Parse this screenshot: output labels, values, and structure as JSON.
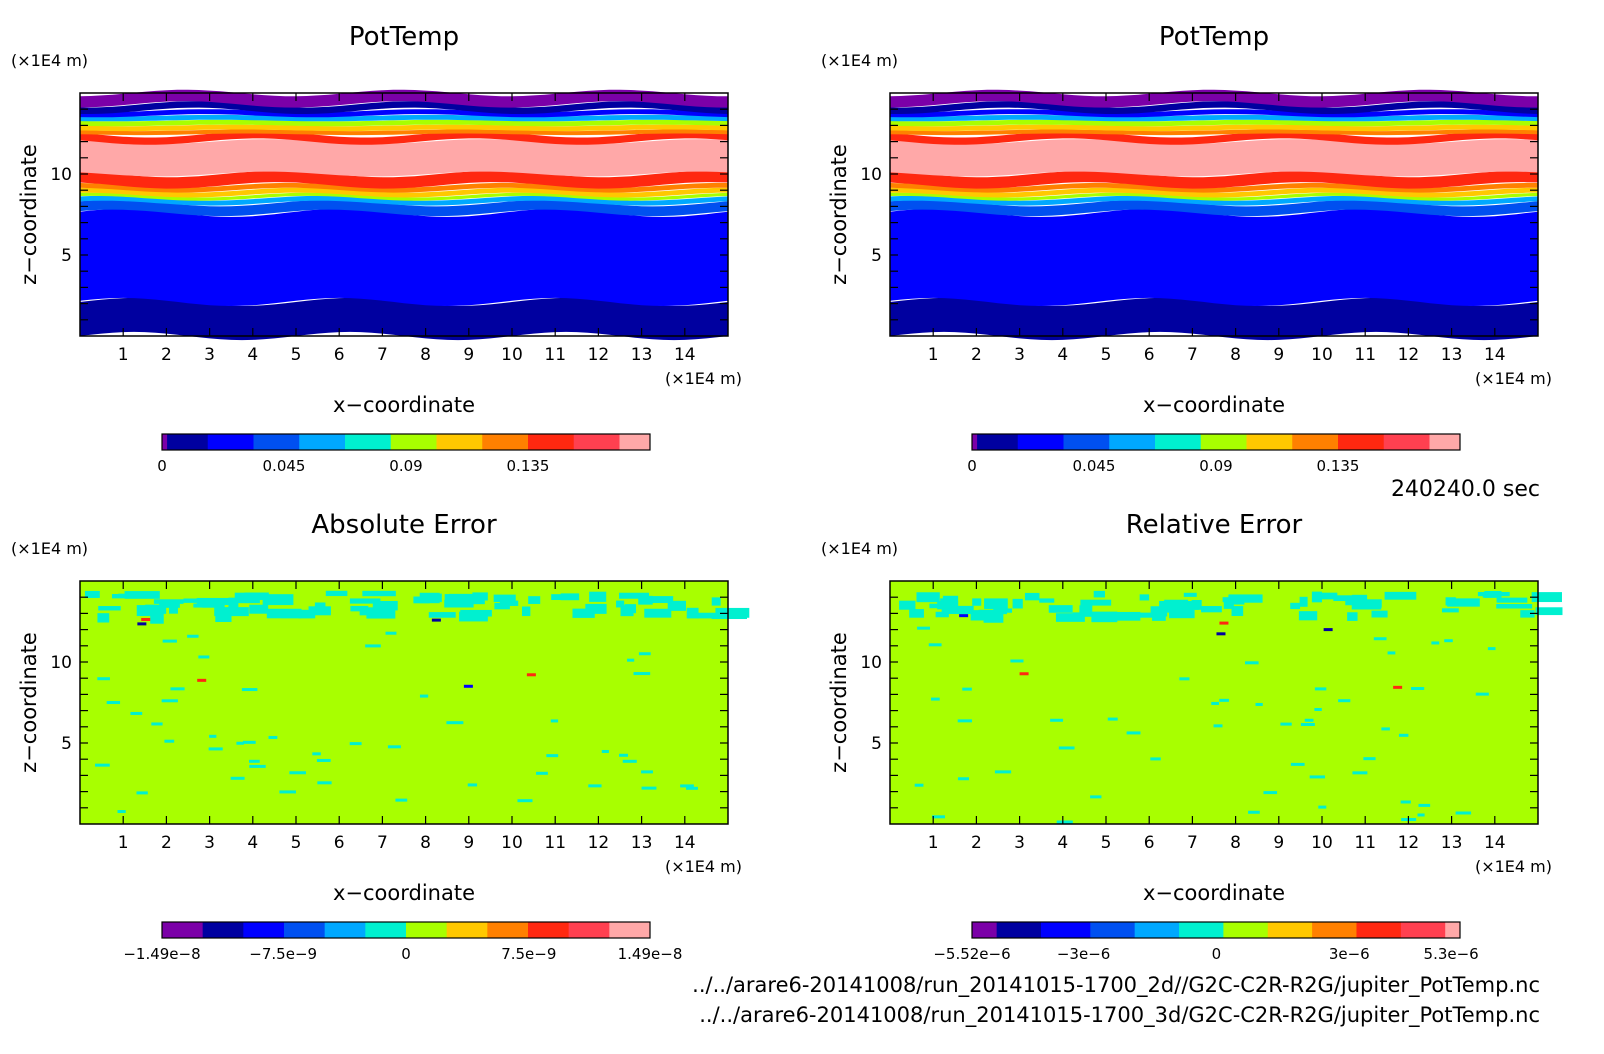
{
  "time_label": "240240.0 sec",
  "files": [
    "../../arare6-20141008/run_20141015-1700_2d//G2C-C2R-R2G/jupiter_PotTemp.nc",
    "../../arare6-20141008/run_20141015-1700_3d/G2C-C2R-R2G/jupiter_PotTemp.nc"
  ],
  "colors": {
    "purple": "#7b00a8",
    "navy": "#0000a0",
    "blue": "#0000ff",
    "mid_blue": "#0050f0",
    "sky_blue": "#00a8ff",
    "cyan": "#00f0d0",
    "lime": "#a8ff00",
    "yellow": "#ffc800",
    "orange": "#ff8000",
    "red": "#ff2810",
    "light_red": "#ff4050",
    "pink": "#ffa8a8"
  },
  "chart_data": [
    {
      "type": "heatmap",
      "title": "PotTemp",
      "xlabel": "x−coordinate",
      "ylabel": "z−coordinate",
      "x_unit": "(×1E4 m)",
      "y_unit": "(×1E4 m)",
      "xlim": [
        0,
        15
      ],
      "ylim": [
        0,
        15
      ],
      "x_ticks": [
        "1",
        "2",
        "3",
        "4",
        "5",
        "6",
        "7",
        "8",
        "9",
        "10",
        "11",
        "12",
        "13",
        "14"
      ],
      "y_ticks": [
        "5",
        "10"
      ],
      "field": "potential_temperature_bands",
      "colorbar": {
        "colors": [
          "#7b00a8",
          "#0000a0",
          "#0000ff",
          "#0050f0",
          "#00a8ff",
          "#00f0d0",
          "#a8ff00",
          "#ffc800",
          "#ff8000",
          "#ff2810",
          "#ff4050",
          "#ffa8a8"
        ],
        "widths": [
          1,
          8,
          9,
          9,
          9,
          9,
          9,
          9,
          9,
          9,
          9,
          6
        ],
        "labels": [
          "0",
          "0.045",
          "0.09",
          "0.135"
        ],
        "label_values": [
          0,
          0.045,
          0.09,
          0.135
        ],
        "range": [
          0,
          0.18
        ]
      }
    },
    {
      "type": "heatmap",
      "title": "PotTemp",
      "xlabel": "x−coordinate",
      "ylabel": "z−coordinate",
      "x_unit": "(×1E4 m)",
      "y_unit": "(×1E4 m)",
      "xlim": [
        0,
        15
      ],
      "ylim": [
        0,
        15
      ],
      "x_ticks": [
        "1",
        "2",
        "3",
        "4",
        "5",
        "6",
        "7",
        "8",
        "9",
        "10",
        "11",
        "12",
        "13",
        "14"
      ],
      "y_ticks": [
        "5",
        "10"
      ],
      "field": "potential_temperature_bands",
      "colorbar": {
        "colors": [
          "#7b00a8",
          "#0000a0",
          "#0000ff",
          "#0050f0",
          "#00a8ff",
          "#00f0d0",
          "#a8ff00",
          "#ffc800",
          "#ff8000",
          "#ff2810",
          "#ff4050",
          "#ffa8a8"
        ],
        "widths": [
          1,
          8,
          9,
          9,
          9,
          9,
          9,
          9,
          9,
          9,
          9,
          6
        ],
        "labels": [
          "0",
          "0.045",
          "0.09",
          "0.135"
        ],
        "label_values": [
          0,
          0.045,
          0.09,
          0.135
        ],
        "range": [
          0,
          0.18
        ]
      }
    },
    {
      "type": "heatmap",
      "title": "Absolute Error",
      "xlabel": "x−coordinate",
      "ylabel": "z−coordinate",
      "x_unit": "(×1E4 m)",
      "y_unit": "(×1E4 m)",
      "xlim": [
        0,
        15
      ],
      "ylim": [
        0,
        15
      ],
      "x_ticks": [
        "1",
        "2",
        "3",
        "4",
        "5",
        "6",
        "7",
        "8",
        "9",
        "10",
        "11",
        "12",
        "13",
        "14"
      ],
      "y_ticks": [
        "5",
        "10"
      ],
      "field": "error_noise",
      "seed": 7,
      "background": "#a8ff00",
      "colorbar": {
        "colors": [
          "#7b00a8",
          "#0000a0",
          "#0000ff",
          "#0050f0",
          "#00a8ff",
          "#00f0d0",
          "#a8ff00",
          "#ffc800",
          "#ff8000",
          "#ff2810",
          "#ff4050",
          "#ffa8a8"
        ],
        "widths": [
          1,
          1,
          1,
          1,
          1,
          1,
          1,
          1,
          1,
          1,
          1,
          1
        ],
        "labels": [
          "−1.49e−8",
          "−7.5e−9",
          "0",
          "7.5e−9",
          "1.49e−8"
        ],
        "label_values": [
          -1.49e-08,
          -7.5e-09,
          0,
          7.5e-09,
          1.49e-08
        ],
        "range": [
          -1.49e-08,
          1.49e-08
        ]
      }
    },
    {
      "type": "heatmap",
      "title": "Relative Error",
      "xlabel": "x−coordinate",
      "ylabel": "z−coordinate",
      "x_unit": "(×1E4 m)",
      "y_unit": "(×1E4 m)",
      "xlim": [
        0,
        15
      ],
      "ylim": [
        0,
        15
      ],
      "x_ticks": [
        "1",
        "2",
        "3",
        "4",
        "5",
        "6",
        "7",
        "8",
        "9",
        "10",
        "11",
        "12",
        "13",
        "14"
      ],
      "y_ticks": [
        "5",
        "10"
      ],
      "field": "error_noise",
      "seed": 23,
      "background": "#a8ff00",
      "colorbar": {
        "colors": [
          "#7b00a8",
          "#0000a0",
          "#0000ff",
          "#0050f0",
          "#00a8ff",
          "#00f0d0",
          "#a8ff00",
          "#ffc800",
          "#ff8000",
          "#ff2810",
          "#ff4050",
          "#ffa8a8"
        ],
        "widths": [
          5,
          9,
          10,
          9,
          9,
          9,
          9,
          9,
          9,
          9,
          9,
          3
        ],
        "labels": [
          "−5.52e−6",
          "−3e−6",
          "0",
          "3e−6",
          "5.3e−6"
        ],
        "label_values": [
          -5.52e-06,
          -3e-06,
          0,
          3e-06,
          5.3e-06
        ],
        "range": [
          -5.52e-06,
          5.5e-06
        ]
      }
    }
  ]
}
